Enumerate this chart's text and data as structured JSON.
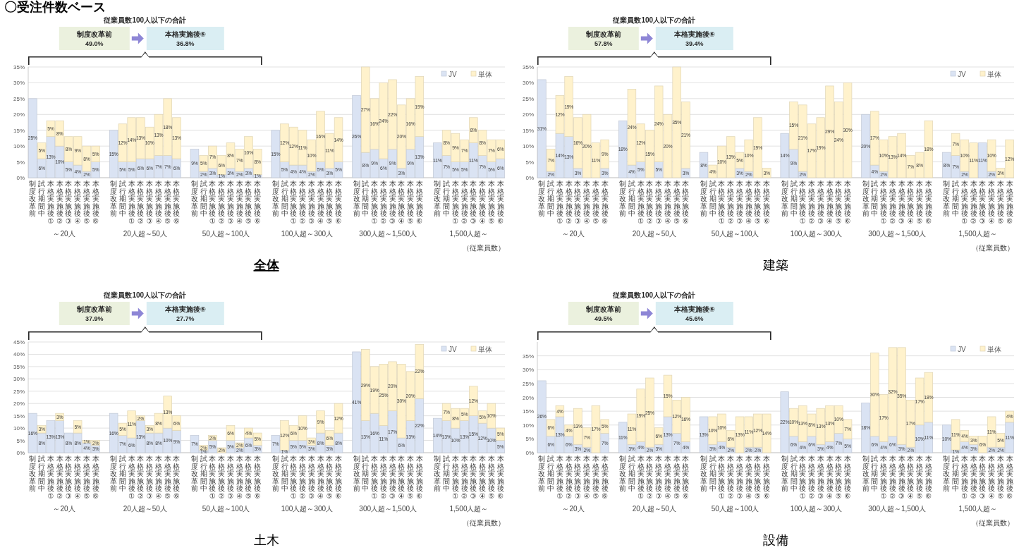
{
  "chart_data": [
    {
      "type": "bar",
      "stacked": true,
      "title": "全体",
      "grid": "y",
      "legend": "top right",
      "ylim": [
        0,
        35
      ],
      "yticks": [
        {
          "value": 0,
          "label": "0%"
        },
        {
          "value": 5,
          "label": "5%"
        },
        {
          "value": 10,
          "label": "10%"
        },
        {
          "value": 15,
          "label": "15%"
        },
        {
          "value": 20,
          "label": "20%"
        },
        {
          "value": 25,
          "label": "25%"
        },
        {
          "value": 30,
          "label": "30%"
        },
        {
          "value": 35,
          "label": "35%"
        }
      ],
      "categories": [
        "制度改革前",
        "試行期間中",
        "本格実施後①",
        "本格実施後②",
        "本格実施後③",
        "本格実施後④",
        "本格実施後⑤",
        "本格実施後⑥",
        null,
        "制度改革前",
        "試行期間中",
        "本格実施後①",
        "本格実施後②",
        "本格実施後③",
        "本格実施後④",
        "本格実施後⑤",
        "本格実施後⑥",
        null,
        "制度改革前",
        "試行期間中",
        "本格実施後①",
        "本格実施後②",
        "本格実施後③",
        "本格実施後④",
        "本格実施後⑤",
        "本格実施後⑥",
        null,
        "制度改革前",
        "試行期間中",
        "本格実施後①",
        "本格実施後②",
        "本格実施後③",
        "本格実施後④",
        "本格実施後⑤",
        "本格実施後⑥",
        null,
        "制度改革前",
        "試行期間中",
        "本格実施後①",
        "本格実施後②",
        "本格実施後③",
        "本格実施後④",
        "本格実施後⑤",
        "本格実施後⑥",
        null,
        "制度改革前",
        "試行期間中",
        "本格実施後①",
        "本格実施後②",
        "本格実施後③",
        "本格実施後④",
        "本格実施後⑤",
        "本格実施後⑥"
      ],
      "series": [
        {
          "name": "JV",
          "color": "#dae3f3",
          "values": [
            25,
            6,
            13,
            10,
            5,
            4,
            2,
            5,
            null,
            15,
            5,
            5,
            6,
            6,
            7,
            7,
            6,
            null,
            9,
            2,
            3,
            1,
            3,
            2,
            3,
            1,
            null,
            15,
            5,
            4,
            4,
            2,
            5,
            3,
            5,
            null,
            26,
            8,
            9,
            6,
            9,
            3,
            9,
            13,
            null,
            11,
            7,
            5,
            5,
            11,
            7,
            5,
            6
          ],
          "value_labels": [
            "25%",
            "6%",
            "13%",
            "10%",
            "5%",
            "4%",
            "2%",
            "5%",
            null,
            "15%",
            "5%",
            "5%",
            "6%",
            "6%",
            "7%",
            "7%",
            "6%",
            null,
            "9%",
            "2%",
            "3%",
            "1%",
            "3%",
            "2%",
            "3%",
            "1%",
            null,
            "15%",
            "5%",
            "4%",
            "4%",
            "2%",
            "5%",
            "3%",
            "5%",
            null,
            "26%",
            "8%",
            "9%",
            "6%",
            "9%",
            "3%",
            "9%",
            "13%",
            null,
            "11%",
            "7%",
            "5%",
            "5%",
            "11%",
            "7%",
            "5%",
            "6%"
          ]
        },
        {
          "name": "単体",
          "color": "#fff2cc",
          "values": [
            0,
            5,
            5,
            8,
            8,
            9,
            8,
            5,
            null,
            0,
            12,
            14,
            13,
            10,
            13,
            18,
            13,
            null,
            0,
            5,
            7,
            6,
            8,
            7,
            10,
            8,
            null,
            0,
            12,
            12,
            11,
            10,
            16,
            11,
            14,
            null,
            0,
            27,
            16,
            24,
            22,
            20,
            16,
            19,
            null,
            0,
            8,
            9,
            7,
            8,
            8,
            7,
            6
          ],
          "value_labels": [
            null,
            "5%",
            "5%",
            "8%",
            "8%",
            "9%",
            "8%",
            "5%",
            null,
            null,
            "12%",
            "14%",
            "13%",
            "10%",
            "13%",
            "18%",
            "13%",
            null,
            null,
            "5%",
            "7%",
            "6%",
            "8%",
            "7%",
            "10%",
            "8%",
            null,
            null,
            "12%",
            "12%",
            "11%",
            "10%",
            "16%",
            "11%",
            "14%",
            null,
            null,
            "27%",
            "16%",
            "24%",
            "22%",
            "20%",
            "16%",
            "19%",
            null,
            null,
            "8%",
            "9%",
            "7%",
            "8%",
            "8%",
            "7%",
            "6%"
          ]
        }
      ],
      "annotations": [
        "～20人",
        "20人超～50人",
        "50人超～100人",
        "100人超～300人",
        "300人超～1,500人",
        "1,500人超～",
        "従業員数100人以下の合計",
        "制度改革前",
        "49.0%",
        "本格実施後⑥",
        "36.8%",
        "（従業員数）",
        "〇受注件数ベース"
      ]
    },
    {
      "type": "bar",
      "stacked": true,
      "title": "建築",
      "grid": "y",
      "legend": "top right",
      "ylim": [
        0,
        35
      ],
      "yticks": [
        {
          "value": 0,
          "label": "0%"
        },
        {
          "value": 5,
          "label": "5%"
        },
        {
          "value": 10,
          "label": "10%"
        },
        {
          "value": 15,
          "label": "15%"
        },
        {
          "value": 20,
          "label": "20%"
        },
        {
          "value": 25,
          "label": "25%"
        },
        {
          "value": 30,
          "label": "30%"
        },
        {
          "value": 35,
          "label": "35%"
        }
      ],
      "categories": [
        "制度改革前",
        "試行期間中",
        "本格実施後①",
        "本格実施後②",
        "本格実施後③",
        "本格実施後④",
        "本格実施後⑤",
        "本格実施後⑥",
        null,
        "制度改革前",
        "試行期間中",
        "本格実施後①",
        "本格実施後②",
        "本格実施後③",
        "本格実施後④",
        "本格実施後⑤",
        "本格実施後⑥",
        null,
        "制度改革前",
        "試行期間中",
        "本格実施後①",
        "本格実施後②",
        "本格実施後③",
        "本格実施後④",
        "本格実施後⑤",
        "本格実施後⑥",
        null,
        "制度改革前",
        "試行期間中",
        "本格実施後①",
        "本格実施後②",
        "本格実施後③",
        "本格実施後④",
        "本格実施後⑤",
        "本格実施後⑥",
        null,
        "制度改革前",
        "試行期間中",
        "本格実施後①",
        "本格実施後②",
        "本格実施後③",
        "本格実施後④",
        "本格実施後⑤",
        "本格実施後⑥",
        null,
        "制度改革前",
        "試行期間中",
        "本格実施後①",
        "本格実施後②",
        "本格実施後③",
        "本格実施後④",
        "本格実施後⑤",
        "本格実施後⑥"
      ],
      "series": [
        {
          "name": "JV",
          "color": "#dae3f3",
          "values": [
            31,
            2,
            14,
            13,
            3,
            0,
            0,
            3,
            null,
            18,
            4,
            5,
            0,
            5,
            0,
            0,
            3,
            null,
            8,
            0,
            0,
            0,
            3,
            2,
            0,
            0,
            null,
            14,
            9,
            2,
            0,
            0,
            0,
            0,
            0,
            null,
            20,
            4,
            2,
            0,
            0,
            0,
            0,
            0,
            null,
            8,
            7,
            2,
            0,
            11,
            2,
            0,
            0
          ],
          "value_labels": [
            "31%",
            "2%",
            "14%",
            "13%",
            "3%",
            null,
            null,
            "3%",
            null,
            "18%",
            "4%",
            "5%",
            null,
            "5%",
            null,
            null,
            "3%",
            null,
            "8%",
            null,
            null,
            null,
            "3%",
            "2%",
            null,
            null,
            null,
            "14%",
            "9%",
            "2%",
            null,
            null,
            null,
            null,
            null,
            null,
            "20%",
            "4%",
            "2%",
            null,
            null,
            null,
            null,
            null,
            null,
            "8%",
            "7%",
            "2%",
            null,
            "11%",
            "2%",
            null,
            null
          ]
        },
        {
          "name": "単体",
          "color": "#fff2cc",
          "values": [
            0,
            7,
            12,
            19,
            16,
            20,
            11,
            9,
            null,
            0,
            24,
            12,
            15,
            24,
            20,
            35,
            21,
            null,
            0,
            4,
            10,
            13,
            5,
            10,
            19,
            3,
            null,
            0,
            15,
            21,
            17,
            19,
            29,
            24,
            30,
            null,
            0,
            17,
            10,
            13,
            14,
            7,
            8,
            18,
            null,
            0,
            7,
            10,
            11,
            0,
            10,
            3,
            12
          ],
          "value_labels": [
            null,
            "7%",
            "12%",
            "19%",
            "16%",
            "20%",
            "11%",
            "9%",
            null,
            null,
            "24%",
            "12%",
            "15%",
            "24%",
            "20%",
            "35%",
            "21%",
            null,
            null,
            "4%",
            "10%",
            "13%",
            "5%",
            "10%",
            "19%",
            "3%",
            null,
            null,
            "15%",
            "21%",
            "17%",
            "19%",
            "29%",
            "24%",
            "30%",
            null,
            null,
            "17%",
            "10%",
            "13%",
            "14%",
            "7%",
            "8%",
            "18%",
            null,
            null,
            "7%",
            "10%",
            "11%",
            null,
            "10%",
            "3%",
            "12%"
          ]
        }
      ],
      "annotations": [
        "～20人",
        "20人超～50人",
        "50人超～100人",
        "100人超～300人",
        "300人超～1,500人",
        "1,500人超～",
        "従業員数100人以下の合計",
        "制度改革前",
        "57.8%",
        "本格実施後⑥",
        "39.4%",
        "（従業員数）"
      ]
    },
    {
      "type": "bar",
      "stacked": true,
      "title": "土木",
      "grid": "y",
      "legend": "top right",
      "ylim": [
        0,
        45
      ],
      "yticks": [
        {
          "value": 0,
          "label": "0%"
        },
        {
          "value": 5,
          "label": "5%"
        },
        {
          "value": 10,
          "label": "10%"
        },
        {
          "value": 15,
          "label": "15%"
        },
        {
          "value": 20,
          "label": "20%"
        },
        {
          "value": 25,
          "label": "25%"
        },
        {
          "value": 30,
          "label": "30%"
        },
        {
          "value": 35,
          "label": "35%"
        },
        {
          "value": 40,
          "label": "40%"
        },
        {
          "value": 45,
          "label": "45%"
        }
      ],
      "categories": [
        "制度改革前",
        "試行期間中",
        "本格実施後①",
        "本格実施後②",
        "本格実施後③",
        "本格実施後④",
        "本格実施後⑤",
        "本格実施後⑥",
        null,
        "制度改革前",
        "試行期間中",
        "本格実施後①",
        "本格実施後②",
        "本格実施後③",
        "本格実施後④",
        "本格実施後⑤",
        "本格実施後⑥",
        null,
        "制度改革前",
        "試行期間中",
        "本格実施後①",
        "本格実施後②",
        "本格実施後③",
        "本格実施後④",
        "本格実施後⑤",
        "本格実施後⑥",
        null,
        "制度改革前",
        "試行期間中",
        "本格実施後①",
        "本格実施後②",
        "本格実施後③",
        "本格実施後④",
        "本格実施後⑤",
        "本格実施後⑥",
        null,
        "制度改革前",
        "試行期間中",
        "本格実施後①",
        "本格実施後②",
        "本格実施後③",
        "本格実施後④",
        "本格実施後⑤",
        "本格実施後⑥",
        null,
        "制度改革前",
        "試行期間中",
        "本格実施後①",
        "本格実施後②",
        "本格実施後③",
        "本格実施後④",
        "本格実施後⑤",
        "本格実施後⑥"
      ],
      "series": [
        {
          "name": "JV",
          "color": "#dae3f3",
          "values": [
            16,
            8,
            13,
            13,
            8,
            8,
            4,
            3,
            null,
            16,
            7,
            6,
            13,
            8,
            8,
            10,
            9,
            null,
            7,
            1,
            5,
            0,
            5,
            2,
            6,
            3,
            null,
            7,
            1,
            5,
            5,
            3,
            8,
            3,
            8,
            null,
            41,
            13,
            16,
            11,
            17,
            6,
            13,
            22,
            null,
            14,
            13,
            10,
            13,
            15,
            12,
            10,
            5
          ],
          "value_labels": [
            "16%",
            "8%",
            "13%",
            "13%",
            "8%",
            "8%",
            "4%",
            "3%",
            null,
            "16%",
            "7%",
            "6%",
            "13%",
            "8%",
            "8%",
            "10%",
            "9%",
            null,
            "7%",
            "1%",
            "5%",
            null,
            "5%",
            "2%",
            "6%",
            "3%",
            null,
            "7%",
            "1%",
            "5%",
            "5%",
            "3%",
            "8%",
            "3%",
            "8%",
            null,
            "41%",
            "13%",
            "16%",
            "11%",
            "17%",
            "6%",
            "13%",
            "22%",
            null,
            "14%",
            "13%",
            "10%",
            "13%",
            "15%",
            "12%",
            "10%",
            "5%"
          ]
        },
        {
          "name": "単体",
          "color": "#fff2cc",
          "values": [
            0,
            3,
            0,
            3,
            0,
            5,
            1,
            2,
            null,
            0,
            5,
            11,
            2,
            3,
            8,
            13,
            6,
            null,
            0,
            2,
            2,
            2,
            6,
            2,
            4,
            5,
            null,
            0,
            12,
            6,
            10,
            3,
            9,
            6,
            12,
            null,
            0,
            29,
            19,
            25,
            20,
            30,
            20,
            22,
            null,
            0,
            7,
            8,
            5,
            12,
            5,
            10,
            5
          ],
          "value_labels": [
            null,
            "3%",
            null,
            "3%",
            null,
            "5%",
            "1%",
            "2%",
            null,
            null,
            "5%",
            "11%",
            "2%",
            "3%",
            "8%",
            "13%",
            "6%",
            null,
            null,
            "2%",
            "2%",
            "2%",
            "6%",
            "2%",
            "4%",
            "5%",
            null,
            null,
            "12%",
            "6%",
            "10%",
            "3%",
            "9%",
            "6%",
            "12%",
            null,
            null,
            "29%",
            "19%",
            "25%",
            "20%",
            "30%",
            "20%",
            "22%",
            null,
            null,
            "7%",
            "8%",
            "5%",
            "12%",
            "5%",
            "10%",
            "5%"
          ]
        }
      ],
      "annotations": [
        "～20人",
        "20人超～50人",
        "50人超～100人",
        "100人超～300人",
        "300人超～1,500人",
        "1,500人超～",
        "従業員数100人以下の合計",
        "制度改革前",
        "37.9%",
        "本格実施後⑥",
        "27.7%",
        "（従業員数）"
      ]
    },
    {
      "type": "bar",
      "stacked": true,
      "title": "設備",
      "grid": "y",
      "legend": "top right",
      "ylim": [
        0,
        40
      ],
      "yticks": [
        {
          "value": 0,
          "label": "0%"
        },
        {
          "value": 5,
          "label": "5%"
        },
        {
          "value": 10,
          "label": "10%"
        },
        {
          "value": 15,
          "label": "15%"
        },
        {
          "value": 20,
          "label": "20%"
        },
        {
          "value": 25,
          "label": "25%"
        },
        {
          "value": 30,
          "label": "30%"
        },
        {
          "value": 35,
          "label": "35%"
        }
      ],
      "categories": [
        "制度改革前",
        "試行期間中",
        "本格実施後①",
        "本格実施後②",
        "本格実施後③",
        "本格実施後④",
        "本格実施後⑤",
        "本格実施後⑥",
        null,
        "制度改革前",
        "試行期間中",
        "本格実施後①",
        "本格実施後②",
        "本格実施後③",
        "本格実施後④",
        "本格実施後⑤",
        "本格実施後⑥",
        null,
        "制度改革前",
        "試行期間中",
        "本格実施後①",
        "本格実施後②",
        "本格実施後③",
        "本格実施後④",
        "本格実施後⑤",
        "本格実施後⑥",
        null,
        "制度改革前",
        "試行期間中",
        "本格実施後①",
        "本格実施後②",
        "本格実施後③",
        "本格実施後④",
        "本格実施後⑤",
        "本格実施後⑥",
        null,
        "制度改革前",
        "試行期間中",
        "本格実施後①",
        "本格実施後②",
        "本格実施後③",
        "本格実施後④",
        "本格実施後⑤",
        "本格実施後⑥",
        null,
        "制度改革前",
        "試行期間中",
        "本格実施後①",
        "本格実施後②",
        "本格実施後③",
        "本格実施後④",
        "本格実施後⑤",
        "本格実施後⑥"
      ],
      "series": [
        {
          "name": "JV",
          "color": "#dae3f3",
          "values": [
            26,
            6,
            13,
            6,
            3,
            2,
            0,
            7,
            null,
            11,
            3,
            4,
            2,
            3,
            13,
            7,
            4,
            null,
            13,
            3,
            4,
            2,
            0,
            2,
            2,
            0,
            null,
            22,
            6,
            4,
            6,
            3,
            4,
            7,
            5,
            null,
            18,
            6,
            4,
            6,
            3,
            2,
            10,
            11,
            null,
            10,
            1,
            4,
            3,
            0,
            2,
            2,
            11
          ],
          "value_labels": [
            "26%",
            "6%",
            "13%",
            "6%",
            "3%",
            "2%",
            null,
            "7%",
            null,
            "11%",
            "3%",
            "4%",
            "2%",
            "3%",
            "13%",
            "7%",
            "4%",
            null,
            "13%",
            "3%",
            "4%",
            "2%",
            null,
            "2%",
            "2%",
            null,
            null,
            "22%",
            "6%",
            "4%",
            "6%",
            "3%",
            "4%",
            "7%",
            "5%",
            null,
            "18%",
            "6%",
            "4%",
            "6%",
            "3%",
            "2%",
            "10%",
            "11%",
            null,
            "10%",
            "1%",
            "4%",
            "3%",
            null,
            "2%",
            "2%",
            "11%"
          ]
        },
        {
          "name": "単体",
          "color": "#fff2cc",
          "values": [
            0,
            6,
            4,
            4,
            13,
            7,
            17,
            5,
            null,
            0,
            11,
            19,
            25,
            6,
            15,
            12,
            16,
            null,
            0,
            10,
            10,
            6,
            13,
            11,
            12,
            14,
            null,
            0,
            10,
            13,
            8,
            13,
            13,
            10,
            7,
            null,
            0,
            30,
            17,
            32,
            35,
            17,
            17,
            18,
            null,
            0,
            11,
            4,
            3,
            6,
            11,
            5,
            4
          ],
          "value_labels": [
            null,
            "6%",
            "4%",
            "4%",
            "13%",
            "7%",
            "17%",
            "5%",
            null,
            null,
            "11%",
            "19%",
            "25%",
            "6%",
            "15%",
            "12%",
            "16%",
            null,
            null,
            "10%",
            "10%",
            "6%",
            "13%",
            "11%",
            "12%",
            "14%",
            null,
            null,
            "10%",
            "13%",
            "8%",
            "13%",
            "13%",
            "10%",
            "7%",
            null,
            null,
            "30%",
            "17%",
            "32%",
            "35%",
            "17%",
            "17%",
            "18%",
            null,
            null,
            "11%",
            "4%",
            "3%",
            "6%",
            "11%",
            "5%",
            "4%"
          ]
        }
      ],
      "annotations": [
        "～20人",
        "20人超～50人",
        "50人超～100人",
        "100人超～300人",
        "300人超～1,500人",
        "1,500人超～",
        "従業員数100人以下の合計",
        "制度改革前",
        "49.5%",
        "本格実施後⑥",
        "45.6%",
        "（従業員数）"
      ]
    }
  ]
}
